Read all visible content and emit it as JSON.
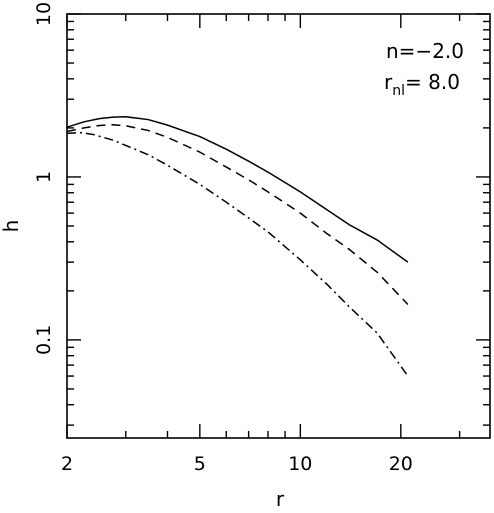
{
  "chart_data": {
    "type": "line",
    "xlabel": "r",
    "ylabel": "h",
    "xscale": "log",
    "yscale": "log",
    "xlim": [
      2,
      37
    ],
    "ylim": [
      0.025,
      10
    ],
    "x_ticks": [
      {
        "value": 2,
        "label": "2"
      },
      {
        "value": 5,
        "label": "5"
      },
      {
        "value": 10,
        "label": "10"
      },
      {
        "value": 20,
        "label": "20"
      }
    ],
    "y_ticks": [
      {
        "value": 0.1,
        "label": "0.1"
      },
      {
        "value": 1,
        "label": "1"
      },
      {
        "value": 10,
        "label": "10"
      }
    ],
    "annotation": {
      "line1": "n=−2.0",
      "line2_main": "r",
      "line2_sub": "nl",
      "line2_rest": "=  8.0"
    },
    "grid": false,
    "series": [
      {
        "style": "solid",
        "points": [
          [
            2.0,
            2.02
          ],
          [
            2.25,
            2.18
          ],
          [
            2.5,
            2.28
          ],
          [
            2.75,
            2.33
          ],
          [
            3.0,
            2.34
          ],
          [
            3.5,
            2.25
          ],
          [
            4.0,
            2.08
          ],
          [
            5.0,
            1.77
          ],
          [
            6.0,
            1.48
          ],
          [
            7.0,
            1.25
          ],
          [
            8.0,
            1.07
          ],
          [
            10.0,
            0.81
          ],
          [
            12.0,
            0.63
          ],
          [
            14.0,
            0.51
          ],
          [
            17.0,
            0.41
          ],
          [
            21.0,
            0.3
          ]
        ]
      },
      {
        "style": "dashed",
        "points": [
          [
            2.0,
            1.9
          ],
          [
            2.25,
            2.0
          ],
          [
            2.5,
            2.07
          ],
          [
            2.75,
            2.09
          ],
          [
            3.0,
            2.06
          ],
          [
            3.5,
            1.93
          ],
          [
            4.0,
            1.75
          ],
          [
            5.0,
            1.42
          ],
          [
            6.0,
            1.15
          ],
          [
            7.0,
            0.96
          ],
          [
            8.0,
            0.81
          ],
          [
            10.0,
            0.6
          ],
          [
            12.0,
            0.45
          ],
          [
            14.0,
            0.36
          ],
          [
            17.0,
            0.26
          ],
          [
            21.0,
            0.165
          ]
        ]
      },
      {
        "style": "dash-dot",
        "points": [
          [
            2.0,
            1.85
          ],
          [
            2.2,
            1.87
          ],
          [
            2.4,
            1.82
          ],
          [
            2.75,
            1.68
          ],
          [
            3.0,
            1.56
          ],
          [
            3.5,
            1.37
          ],
          [
            4.0,
            1.18
          ],
          [
            5.0,
            0.9
          ],
          [
            6.0,
            0.7
          ],
          [
            7.0,
            0.56
          ],
          [
            8.0,
            0.46
          ],
          [
            10.0,
            0.31
          ],
          [
            12.0,
            0.22
          ],
          [
            14.0,
            0.16
          ],
          [
            17.0,
            0.11
          ],
          [
            21.0,
            0.06
          ]
        ]
      }
    ]
  }
}
